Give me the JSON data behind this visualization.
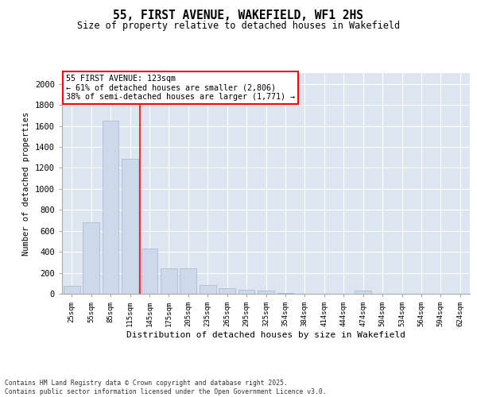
{
  "title": "55, FIRST AVENUE, WAKEFIELD, WF1 2HS",
  "subtitle": "Size of property relative to detached houses in Wakefield",
  "xlabel": "Distribution of detached houses by size in Wakefield",
  "ylabel": "Number of detached properties",
  "categories": [
    "25sqm",
    "55sqm",
    "85sqm",
    "115sqm",
    "145sqm",
    "175sqm",
    "205sqm",
    "235sqm",
    "265sqm",
    "295sqm",
    "325sqm",
    "354sqm",
    "384sqm",
    "414sqm",
    "444sqm",
    "474sqm",
    "504sqm",
    "534sqm",
    "564sqm",
    "594sqm",
    "624sqm"
  ],
  "values": [
    75,
    680,
    1650,
    1290,
    430,
    240,
    240,
    80,
    55,
    40,
    30,
    10,
    0,
    0,
    0,
    30,
    0,
    0,
    0,
    0,
    0
  ],
  "bar_color": "#cdd9e8",
  "bar_edgecolor": "#a0b8d0",
  "vline_index": 3.5,
  "vline_color": "red",
  "annotation_text": "55 FIRST AVENUE: 123sqm\n← 61% of detached houses are smaller (2,806)\n38% of semi-detached houses are larger (1,771) →",
  "annotation_box_color": "red",
  "annotation_bg": "white",
  "grid_color": "#cccccc",
  "background_color": "#dde6f0",
  "ylim": [
    0,
    2100
  ],
  "yticks": [
    0,
    200,
    400,
    600,
    800,
    1000,
    1200,
    1400,
    1600,
    1800,
    2000
  ],
  "footer_line1": "Contains HM Land Registry data © Crown copyright and database right 2025.",
  "footer_line2": "Contains public sector information licensed under the Open Government Licence v3.0."
}
